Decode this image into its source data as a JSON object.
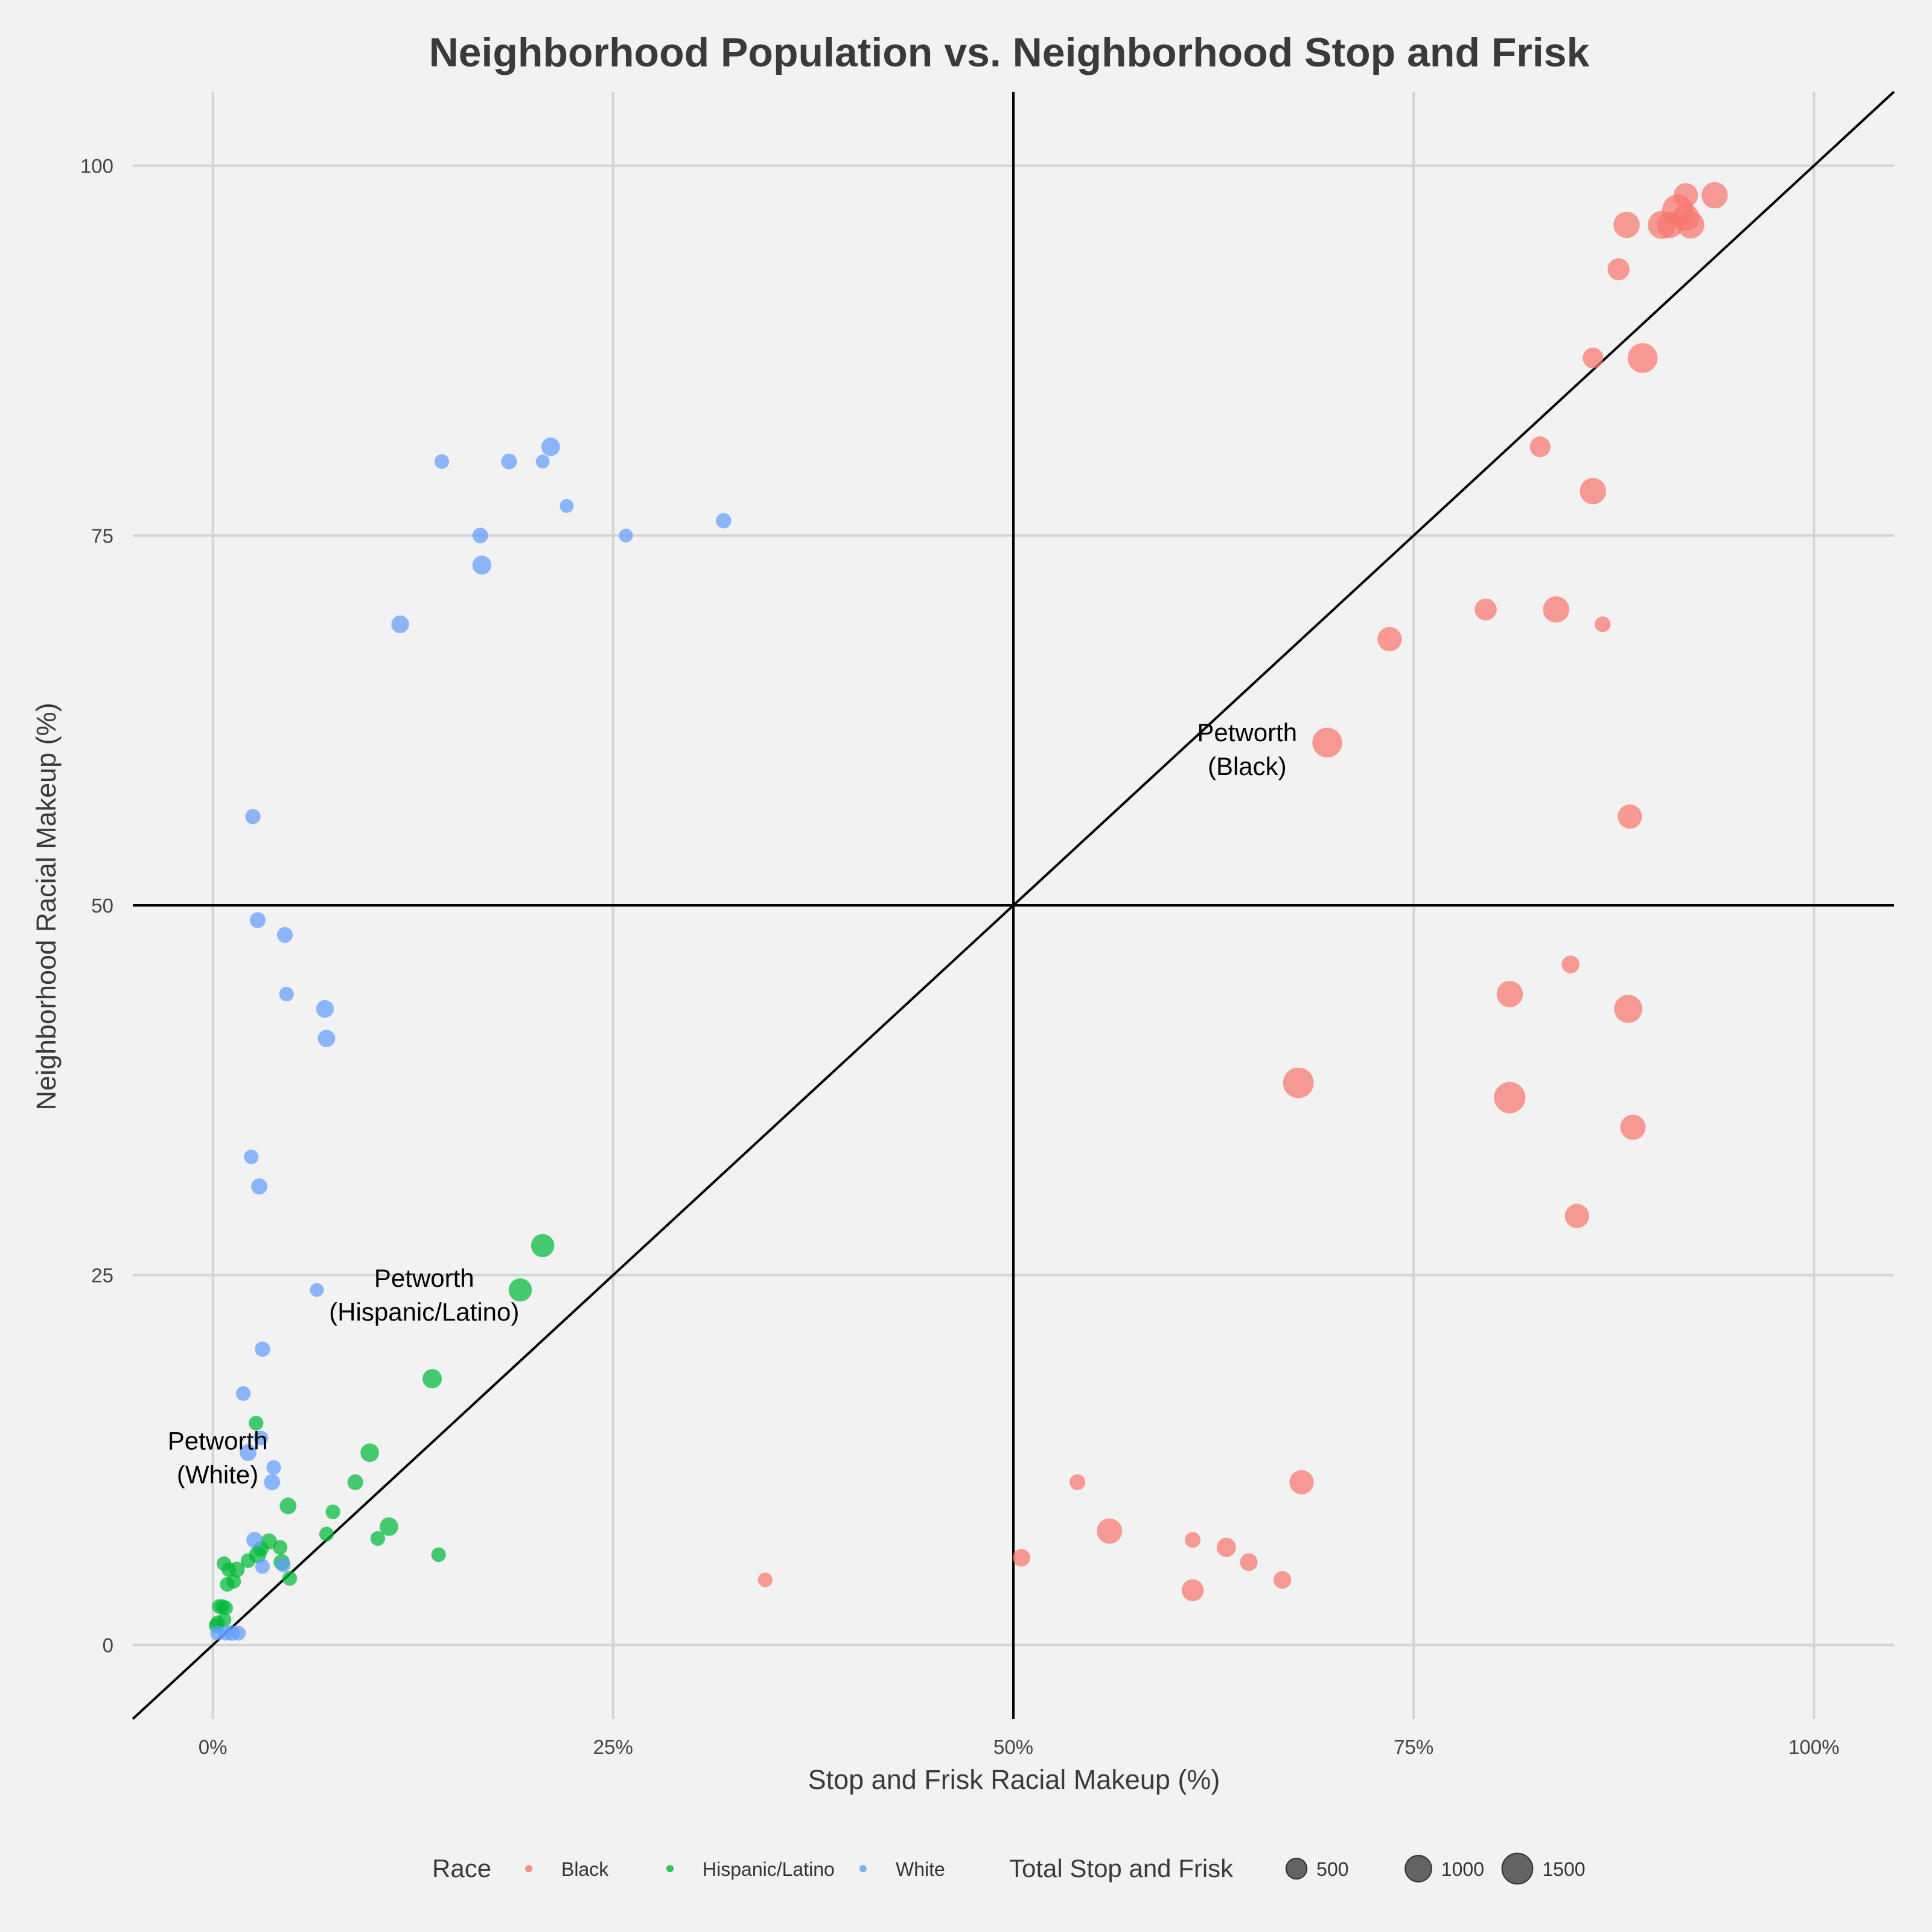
{
  "chart_data": {
    "type": "scatter",
    "title": "Neighborhood Population vs. Neighborhood Stop and Frisk",
    "xlabel": "Stop and Frisk Racial Makeup (%)",
    "ylabel": "Neighborhood Racial Makeup (%)",
    "xlim": [
      -0.05,
      1.05
    ],
    "ylim": [
      -5,
      105
    ],
    "x_ticks": [
      {
        "value": 0,
        "label": "0%"
      },
      {
        "value": 0.25,
        "label": "25%"
      },
      {
        "value": 0.5,
        "label": "50%"
      },
      {
        "value": 0.75,
        "label": "75%"
      },
      {
        "value": 1,
        "label": "100%"
      }
    ],
    "y_ticks": [
      {
        "value": 0,
        "label": "0"
      },
      {
        "value": 25,
        "label": "25"
      },
      {
        "value": 50,
        "label": "50"
      },
      {
        "value": 75,
        "label": "75"
      },
      {
        "value": 100,
        "label": "100"
      }
    ],
    "grid": true,
    "reference_lines": {
      "vertical_x": 0.5,
      "horizontal_y": 50,
      "diagonal": true
    },
    "legend_position": "bottom",
    "color_legend": {
      "title": "Race",
      "entries": [
        "Black",
        "Hispanic/Latino",
        "White"
      ]
    },
    "size_legend": {
      "title": "Total Stop and Frisk",
      "entries": [
        500,
        1000,
        1500
      ]
    },
    "series": [
      {
        "name": "Black",
        "color": "#f8766d",
        "points": [
          [
            0.938,
            98,
            1000
          ],
          [
            0.92,
            98,
            800
          ],
          [
            0.915,
            97,
            1600
          ],
          [
            0.92,
            96.5,
            1100
          ],
          [
            0.923,
            96,
            1100
          ],
          [
            0.905,
            96,
            1200
          ],
          [
            0.91,
            96,
            1000
          ],
          [
            0.883,
            96,
            1000
          ],
          [
            0.878,
            93,
            600
          ],
          [
            0.862,
            87,
            500
          ],
          [
            0.893,
            87,
            1400
          ],
          [
            0.829,
            81,
            500
          ],
          [
            0.862,
            78,
            1000
          ],
          [
            0.795,
            70,
            600
          ],
          [
            0.839,
            70,
            1000
          ],
          [
            0.868,
            69,
            200
          ],
          [
            0.735,
            68,
            800
          ],
          [
            0.696,
            61,
            1400
          ],
          [
            0.885,
            56,
            800
          ],
          [
            0.848,
            46,
            300
          ],
          [
            0.81,
            44,
            1000
          ],
          [
            0.884,
            43,
            1200
          ],
          [
            0.678,
            38,
            1500
          ],
          [
            0.81,
            37,
            1600
          ],
          [
            0.887,
            35,
            900
          ],
          [
            0.852,
            29,
            800
          ],
          [
            0.68,
            11,
            800
          ],
          [
            0.54,
            11,
            200
          ],
          [
            0.56,
            7.7,
            900
          ],
          [
            0.612,
            7.1,
            200
          ],
          [
            0.633,
            6.6,
            400
          ],
          [
            0.647,
            5.6,
            300
          ],
          [
            0.505,
            5.9,
            300
          ],
          [
            0.668,
            4.4,
            300
          ],
          [
            0.612,
            3.7,
            600
          ],
          [
            0.345,
            4.4,
            150
          ]
        ]
      },
      {
        "name": "Hispanic/Latino",
        "color": "#00ba38",
        "points": [
          [
            0.206,
            27,
            700
          ],
          [
            0.192,
            24,
            700
          ],
          [
            0.137,
            18,
            400
          ],
          [
            0.098,
            13,
            350
          ],
          [
            0.089,
            11,
            200
          ],
          [
            0.075,
            9,
            150
          ],
          [
            0.047,
            9.4,
            250
          ],
          [
            0.11,
            8,
            350
          ],
          [
            0.071,
            7.5,
            150
          ],
          [
            0.103,
            7.2,
            150
          ],
          [
            0.035,
            7,
            220
          ],
          [
            0.042,
            6.6,
            150
          ],
          [
            0.03,
            6.5,
            200
          ],
          [
            0.028,
            6.1,
            280
          ],
          [
            0.022,
            5.7,
            150
          ],
          [
            0.043,
            5.6,
            220
          ],
          [
            0.007,
            5.5,
            150
          ],
          [
            0.01,
            5.1,
            150
          ],
          [
            0.015,
            5.1,
            200
          ],
          [
            0.141,
            6.1,
            150
          ],
          [
            0.048,
            4.5,
            150
          ],
          [
            0.013,
            4.3,
            150
          ],
          [
            0.009,
            4.1,
            150
          ],
          [
            0.006,
            2.6,
            150
          ],
          [
            0.004,
            2.6,
            150
          ],
          [
            0.008,
            2.5,
            150
          ],
          [
            0.003,
            1.5,
            150
          ],
          [
            0.002,
            1.3,
            150
          ],
          [
            0.007,
            1.7,
            150
          ],
          [
            0.027,
            15,
            150
          ]
        ]
      },
      {
        "name": "White",
        "color": "#619cff",
        "points": [
          [
            0.211,
            81,
            350
          ],
          [
            0.143,
            80,
            150
          ],
          [
            0.185,
            80,
            200
          ],
          [
            0.206,
            80,
            120
          ],
          [
            0.221,
            77,
            120
          ],
          [
            0.167,
            75,
            200
          ],
          [
            0.258,
            75,
            120
          ],
          [
            0.319,
            76,
            180
          ],
          [
            0.168,
            73,
            380
          ],
          [
            0.117,
            69,
            300
          ],
          [
            0.025,
            56,
            180
          ],
          [
            0.028,
            49,
            200
          ],
          [
            0.045,
            48,
            200
          ],
          [
            0.046,
            44,
            150
          ],
          [
            0.07,
            43,
            300
          ],
          [
            0.071,
            41,
            280
          ],
          [
            0.024,
            33,
            150
          ],
          [
            0.029,
            31,
            220
          ],
          [
            0.065,
            24,
            120
          ],
          [
            0.031,
            20,
            180
          ],
          [
            0.019,
            17,
            150
          ],
          [
            0.022,
            13,
            250
          ],
          [
            0.038,
            12,
            150
          ],
          [
            0.037,
            11,
            220
          ],
          [
            0.026,
            7.1,
            220
          ],
          [
            0.044,
            5.4,
            150
          ],
          [
            0.031,
            5.3,
            150
          ],
          [
            0.03,
            14,
            150
          ],
          [
            0.012,
            0.8,
            180
          ],
          [
            0.016,
            0.8,
            150
          ],
          [
            0.008,
            0.8,
            150
          ],
          [
            0.003,
            0.8,
            150
          ]
        ]
      }
    ],
    "annotations": [
      {
        "lines": [
          "Petworth",
          "(Black)"
        ],
        "x": 0.646,
        "y": 60.7
      },
      {
        "lines": [
          "Petworth",
          "(Hispanic/Latino)"
        ],
        "x": 0.132,
        "y": 23.8
      },
      {
        "lines": [
          "Petworth",
          "(White)"
        ],
        "x": 0.003,
        "y": 12.8
      }
    ]
  }
}
